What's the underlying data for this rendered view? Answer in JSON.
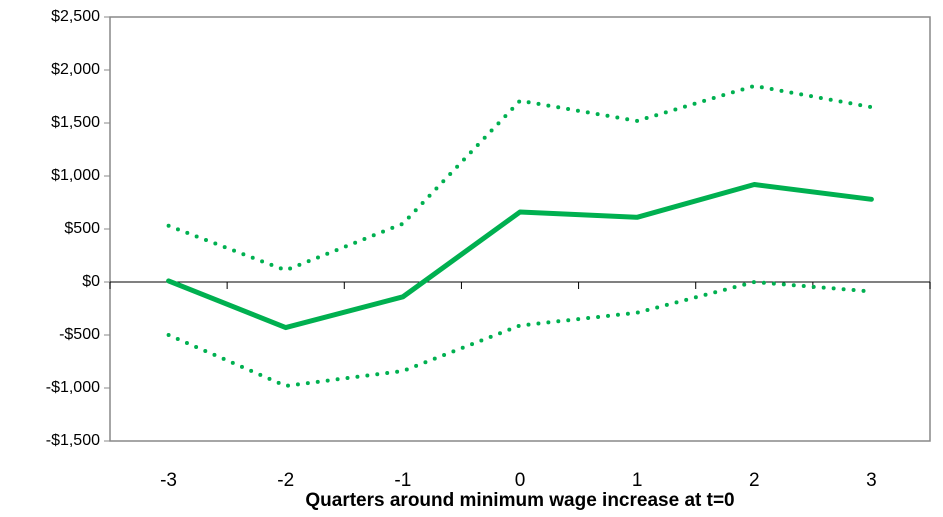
{
  "chart_data": {
    "type": "line",
    "x_label": "Quarters around minimum wage increase at t=0",
    "categories": [
      "-3",
      "-2",
      "-1",
      "0",
      "1",
      "2",
      "3"
    ],
    "series": [
      {
        "color": "#00b050",
        "style": "solid",
        "values": [
          10,
          -430,
          -140,
          660,
          610,
          920,
          780
        ]
      },
      {
        "color": "#00b050",
        "style": "dotted",
        "values": [
          530,
          110,
          550,
          1710,
          1520,
          1850,
          1650
        ]
      },
      {
        "color": "#00b050",
        "style": "dotted",
        "values": [
          -500,
          -980,
          -840,
          -410,
          -290,
          0,
          -90
        ]
      }
    ],
    "ylim": [
      -1500,
      2500
    ],
    "yticks": [
      {
        "value": -1500,
        "label": "-$1,500"
      },
      {
        "value": -1000,
        "label": "-$1,000"
      },
      {
        "value": -500,
        "label": "-$500"
      },
      {
        "value": 0,
        "label": "$0"
      },
      {
        "value": 500,
        "label": "$500"
      },
      {
        "value": 1000,
        "label": "$1,000"
      },
      {
        "value": 1500,
        "label": "$1,500"
      },
      {
        "value": 2000,
        "label": "$2,000"
      },
      {
        "value": 2500,
        "label": "$2,500"
      }
    ]
  }
}
